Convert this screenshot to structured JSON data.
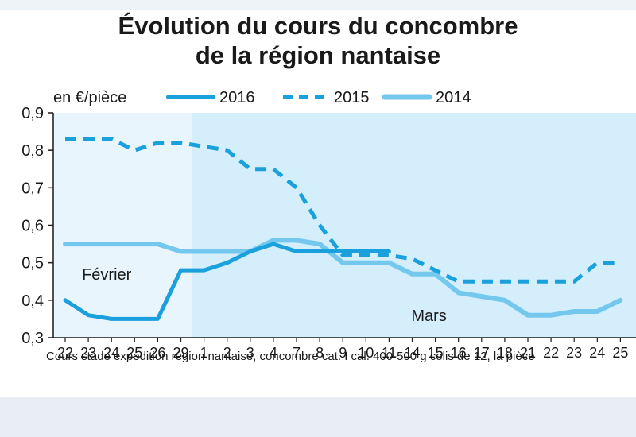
{
  "chart_data": {
    "type": "line",
    "title_line1": "Évolution du cours du concombre",
    "title_line2": "de la région nantaise",
    "unit_label": "en €/pièce",
    "ylim": [
      0.3,
      0.9
    ],
    "y_ticks": [
      "0,9",
      "0,8",
      "0,7",
      "0,6",
      "0,5",
      "0,4",
      "0,3"
    ],
    "y_tick_values": [
      0.9,
      0.8,
      0.7,
      0.6,
      0.5,
      0.4,
      0.3
    ],
    "categories": [
      "22",
      "23",
      "24",
      "25",
      "26",
      "29",
      "1",
      "2",
      "3",
      "4",
      "7",
      "8",
      "9",
      "10",
      "11",
      "14",
      "15",
      "16",
      "17",
      "18",
      "21",
      "22",
      "23",
      "24",
      "25"
    ],
    "month_labels": [
      {
        "text": "Février",
        "category_index": 1
      },
      {
        "text": "Mars",
        "category_index": 16
      }
    ],
    "grid": false,
    "legend_position": "top",
    "series": [
      {
        "name": "2016",
        "style": "solid-thick",
        "color": "#1aa0dc",
        "values": [
          0.4,
          0.36,
          0.35,
          0.35,
          0.35,
          0.48,
          0.48,
          0.5,
          0.53,
          0.55,
          0.53,
          0.53,
          0.53,
          0.53,
          0.53,
          null,
          null,
          null,
          null,
          null,
          null,
          null,
          null,
          null,
          null
        ]
      },
      {
        "name": "2015",
        "style": "dashed",
        "color": "#1aa0dc",
        "values": [
          0.83,
          0.83,
          0.83,
          0.8,
          0.82,
          0.82,
          0.81,
          0.8,
          0.75,
          0.75,
          0.7,
          0.6,
          0.52,
          0.52,
          0.52,
          0.51,
          0.48,
          0.45,
          0.45,
          0.45,
          0.45,
          0.45,
          0.45,
          0.5,
          0.5
        ]
      },
      {
        "name": "2014",
        "style": "solid-light",
        "color": "#74c8ee",
        "values": [
          0.55,
          0.55,
          0.55,
          0.55,
          0.55,
          0.53,
          0.53,
          0.53,
          0.53,
          0.56,
          0.56,
          0.55,
          0.5,
          0.5,
          0.5,
          0.47,
          0.47,
          0.42,
          0.41,
          0.4,
          0.36,
          0.36,
          0.37,
          0.37,
          0.4
        ]
      }
    ],
    "footnote": "Cours stade expédition région nantaise, concombre cat. I cal. 400-500 g colis de 12, la pièce"
  },
  "colors": {
    "shade_fevrier": "#e8f5fd",
    "shade_mars": "#d4eefb",
    "axis": "#1a1a1a"
  }
}
